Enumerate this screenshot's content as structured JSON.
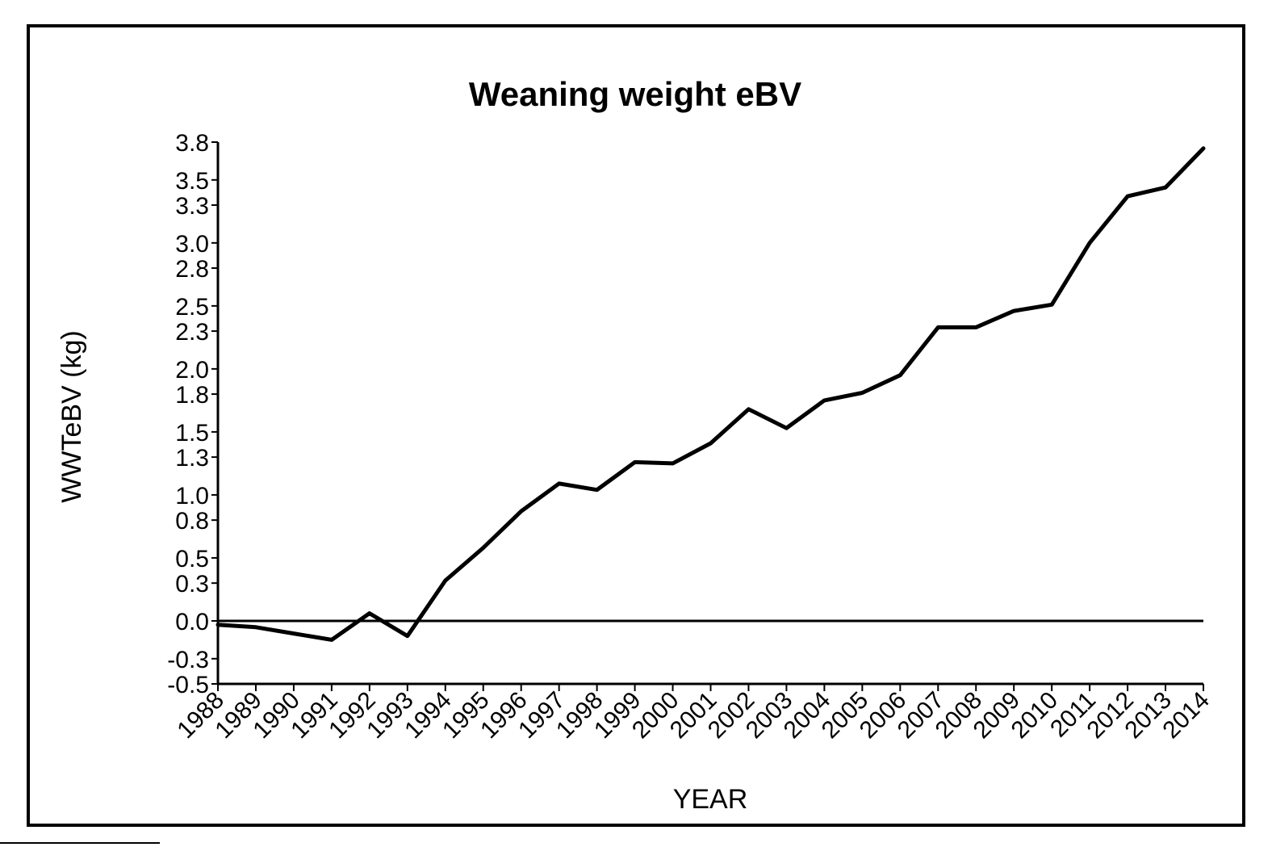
{
  "chart_data": {
    "type": "line",
    "title": "Weaning weight eBV",
    "xlabel": "YEAR",
    "ylabel": "WWTeBV (kg)",
    "ylim": [
      -0.5,
      3.8
    ],
    "y_ticks": [
      -0.5,
      -0.3,
      0.0,
      0.3,
      0.5,
      0.8,
      1.0,
      1.3,
      1.5,
      1.8,
      2.0,
      2.3,
      2.5,
      2.8,
      3.0,
      3.3,
      3.5,
      3.8
    ],
    "y_tick_labels": [
      "-0.5",
      "-0.3",
      "0.0",
      "0.3",
      "0.5",
      "0.8",
      "1.0",
      "1.3",
      "1.5",
      "1.8",
      "2.0",
      "2.3",
      "2.5",
      "2.8",
      "3.0",
      "3.3",
      "3.5",
      "3.8"
    ],
    "categories": [
      "1988",
      "1989",
      "1990",
      "1991",
      "1992",
      "1993",
      "1994",
      "1995",
      "1996",
      "1997",
      "1998",
      "1999",
      "2000",
      "2001",
      "2002",
      "2003",
      "2004",
      "2005",
      "2006",
      "2007",
      "2008",
      "2009",
      "2010",
      "2011",
      "2012",
      "2013",
      "2014"
    ],
    "series": [
      {
        "values": [
          -0.03,
          -0.05,
          -0.1,
          -0.15,
          0.06,
          -0.12,
          0.32,
          0.58,
          0.87,
          1.09,
          1.04,
          1.26,
          1.25,
          1.41,
          1.68,
          1.53,
          1.75,
          1.81,
          1.95,
          2.33,
          2.33,
          2.46,
          2.51,
          3.0,
          3.37,
          3.44,
          3.75
        ],
        "color": "#000000"
      }
    ],
    "zero_line": true,
    "grid": false,
    "legend": "none"
  }
}
